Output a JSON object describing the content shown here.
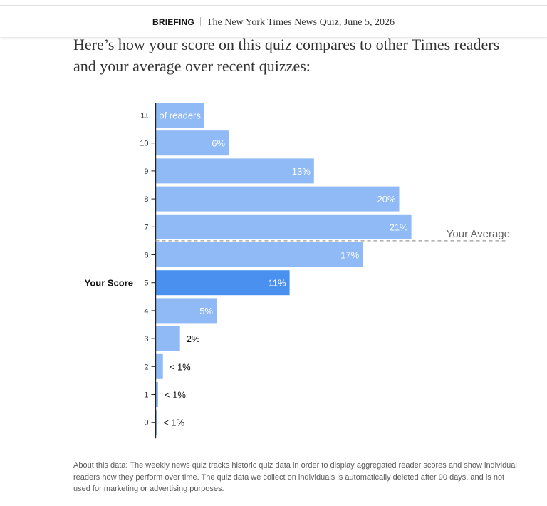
{
  "header": {
    "kicker": "BRIEFING",
    "title": "The New York Times News Quiz, June 5, 2026"
  },
  "headline": "Here’s how your score on this quiz compares to other Times readers and your average over recent quizzes:",
  "chart_data": {
    "type": "bar",
    "orientation": "horizontal",
    "categories": [
      "11",
      "10",
      "9",
      "8",
      "7",
      "6",
      "5",
      "4",
      "3",
      "2",
      "1",
      "0"
    ],
    "values": [
      4,
      6,
      13,
      20,
      21,
      17,
      11,
      5,
      2,
      0.6,
      0.2,
      0.1
    ],
    "labels": [
      "4% of readers",
      "6%",
      "13%",
      "20%",
      "21%",
      "17%",
      "11%",
      "5%",
      "2%",
      "< 1%",
      "< 1%",
      "< 1%"
    ],
    "your_score": "5",
    "your_score_label": "Your Score",
    "average": 6.5,
    "average_label": "Your Average",
    "grid": false,
    "colors": {
      "bar": "#8fbaf5",
      "highlight": "#4a90ee",
      "axis": "#222222",
      "label_inside": "#ffffff",
      "label_outside": "#121212",
      "average_line": "#9a9a9a",
      "average_text": "#666666"
    }
  },
  "note": "About this data: The weekly news quiz tracks historic quiz data in order to display aggregated reader scores and show individual readers how they perform over time. The quiz data we collect on individuals is automatically deleted after 90 days, and is not used for marketing or advertising purposes."
}
